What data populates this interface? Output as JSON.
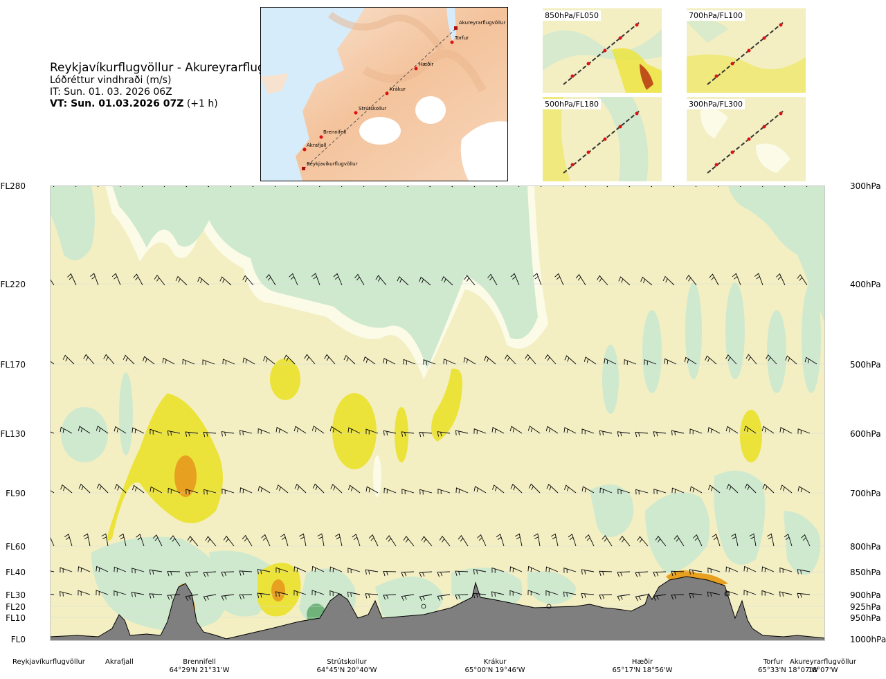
{
  "title": {
    "route": "Reykjavíkurflugvöllur - Akureyrarflugvöllur",
    "parameter": "Lóðréttur vindhraði (m/s)",
    "issue_time": "IT: Sun. 01. 03. 2026 06Z",
    "valid_time": "VT: Sun. 01.03.2026 07Z",
    "valid_offset": " (+1 h)"
  },
  "map": {
    "waypoints": [
      "Akureyrarflugvöllur",
      "Torfur",
      "Hæðir",
      "Krákur",
      "Strútskollur",
      "Brennifell",
      "Akrafjall",
      "Reykjavíkurflugvöllur"
    ]
  },
  "thumbnails": [
    {
      "label": "850hPa/FL050"
    },
    {
      "label": "700hPa/FL100"
    },
    {
      "label": "500hPa/FL180"
    },
    {
      "label": "300hPa/FL300"
    }
  ],
  "axis": {
    "flight_levels": [
      "FL280",
      "FL220",
      "FL170",
      "FL130",
      "FL90",
      "FL60",
      "FL40",
      "FL30",
      "FL20",
      "FL10",
      "FL0"
    ],
    "pressure_levels": [
      "300hPa",
      "400hPa",
      "500hPa",
      "600hPa",
      "700hPa",
      "800hPa",
      "850hPa",
      "900hPa",
      "925hPa",
      "950hPa",
      "1000hPa"
    ]
  },
  "locations": [
    {
      "name": "Reykjavíkurflugvöllur",
      "coord": ""
    },
    {
      "name": "Akrafjall",
      "coord": ""
    },
    {
      "name": "Brennifell",
      "coord": "64°29'N 21°31'W"
    },
    {
      "name": "Strútskollur",
      "coord": "64°45'N 20°40'W"
    },
    {
      "name": "Krákur",
      "coord": "65°00'N 19°46'W"
    },
    {
      "name": "Hæðir",
      "coord": "65°17'N 18°56'W"
    },
    {
      "name": "Torfur",
      "coord": "65°33'N 18°07'W"
    },
    {
      "name": "Akureyrarflugvöllur",
      "coord": ""
    }
  ],
  "colors": {
    "neutral_band": "#f3efc2",
    "light_green": "#cfe9cf",
    "mid_green": "#a6d4a8",
    "dark_green": "#6fb37a",
    "pale_white": "#fbfbe8",
    "yellow": "#ece33a",
    "orange": "#e8a020",
    "dark_orange": "#c0501a",
    "brown": "#7a2a10",
    "terrain": "#7f7f7f",
    "sea": "#d6ecfa",
    "route_line": "#555555",
    "waypoint": "#dd1111"
  }
}
